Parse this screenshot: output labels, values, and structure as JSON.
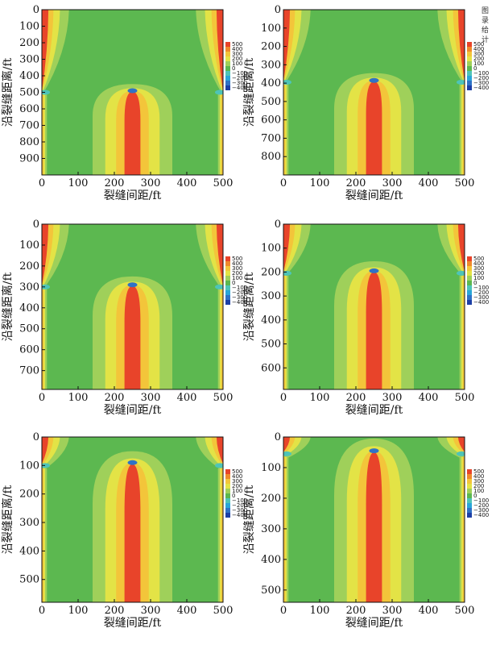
{
  "margin_text": [
    "图",
    "录",
    "给",
    "计",
    "、"
  ],
  "legend": {
    "levels": [
      "500",
      "400",
      "300",
      "200",
      "100",
      "0",
      "−100",
      "−200",
      "−300",
      "−400"
    ],
    "colors": [
      "#e8442a",
      "#f08a2c",
      "#f3c53a",
      "#e3e346",
      "#9fd05a",
      "#5cb850",
      "#4ec4b8",
      "#2aa6d8",
      "#2f72c6",
      "#1d3fa6"
    ]
  },
  "chart_data": [
    {
      "type": "heatmap",
      "xlabel": "裂缝间距/ft",
      "ylabel": "沿裂缝距离/ft",
      "xlim": [
        0,
        500
      ],
      "ylim": [
        1000,
        0
      ],
      "x_ticks": [
        0,
        100,
        200,
        300,
        400,
        500
      ],
      "y_ticks": [
        0,
        100,
        200,
        300,
        400,
        500,
        600,
        700,
        800,
        900
      ],
      "tip_depth": 490
    },
    {
      "type": "heatmap",
      "xlabel": "裂缝间距/ft",
      "ylabel": "沿裂缝距离/ft",
      "xlim": [
        0,
        500
      ],
      "ylim": [
        900,
        0
      ],
      "x_ticks": [
        0,
        100,
        200,
        300,
        400,
        500
      ],
      "y_ticks": [
        0,
        100,
        200,
        300,
        400,
        500,
        600,
        700,
        800
      ],
      "tip_depth": 385
    },
    {
      "type": "heatmap",
      "xlabel": "裂缝间距/ft",
      "ylabel": "沿裂缝距离/ft",
      "xlim": [
        0,
        500
      ],
      "ylim": [
        790,
        0
      ],
      "x_ticks": [
        0,
        100,
        200,
        300,
        400,
        500
      ],
      "y_ticks": [
        0,
        100,
        200,
        300,
        400,
        500,
        600,
        700
      ],
      "tip_depth": 290
    },
    {
      "type": "heatmap",
      "xlabel": "裂缝间距/ft",
      "ylabel": "沿裂缝距离/ft",
      "xlim": [
        0,
        500
      ],
      "ylim": [
        690,
        0
      ],
      "x_ticks": [
        0,
        100,
        200,
        300,
        400,
        500
      ],
      "y_ticks": [
        0,
        100,
        200,
        300,
        400,
        500,
        600
      ],
      "tip_depth": 195
    },
    {
      "type": "heatmap",
      "xlabel": "裂缝间距/ft",
      "ylabel": "沿裂缝距离/ft",
      "xlim": [
        0,
        500
      ],
      "ylim": [
        580,
        0
      ],
      "x_ticks": [
        0,
        100,
        200,
        300,
        400,
        500
      ],
      "y_ticks": [
        0,
        100,
        200,
        300,
        400,
        500
      ],
      "tip_depth": 90
    },
    {
      "type": "heatmap",
      "xlabel": "裂缝间距/ft",
      "ylabel": "沿裂缝距离/ft",
      "xlim": [
        0,
        500
      ],
      "ylim": [
        540,
        0
      ],
      "x_ticks": [
        0,
        100,
        200,
        300,
        400,
        500
      ],
      "y_ticks": [
        0,
        100,
        200,
        300,
        400,
        500
      ],
      "tip_depth": 45
    }
  ]
}
